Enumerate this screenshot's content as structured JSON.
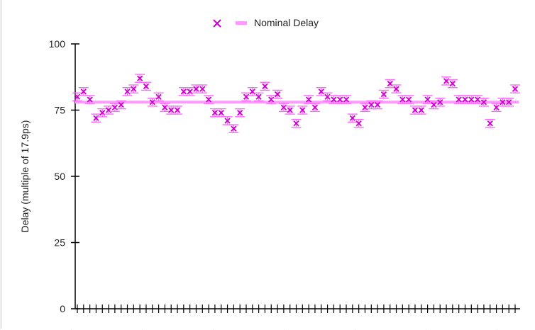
{
  "chart_data": {
    "type": "scatter",
    "title": "",
    "xlabel": "",
    "ylabel": "Delay (multiple of 17.9ps)",
    "ylim": [
      0,
      100
    ],
    "yticks": [
      0,
      25,
      50,
      75,
      100
    ],
    "grid": false,
    "legend_position": "top-center",
    "nominal": 78,
    "error": 1.5,
    "series": [
      {
        "kind": "points-with-error-bars",
        "marker_color": "#cc00cc",
        "bar_color": "#ff66ff",
        "values": [
          80,
          82,
          79,
          72,
          74,
          75,
          76,
          77,
          82,
          83,
          87,
          84,
          78,
          80,
          76,
          75,
          75,
          82,
          82,
          83,
          83,
          79,
          74,
          74,
          71,
          68,
          74,
          80,
          82,
          80,
          84,
          79,
          81,
          76,
          75,
          70,
          75,
          79,
          76,
          82,
          80,
          79,
          79,
          79,
          72,
          70,
          76,
          77,
          77,
          81,
          85,
          83,
          79,
          79,
          75,
          75,
          79,
          77,
          78,
          86,
          85,
          79,
          79,
          79,
          79,
          78,
          70,
          76,
          78,
          78,
          83
        ]
      },
      {
        "name": "Nominal Delay",
        "kind": "line",
        "color": "#ff99ff",
        "value": 78
      }
    ]
  }
}
